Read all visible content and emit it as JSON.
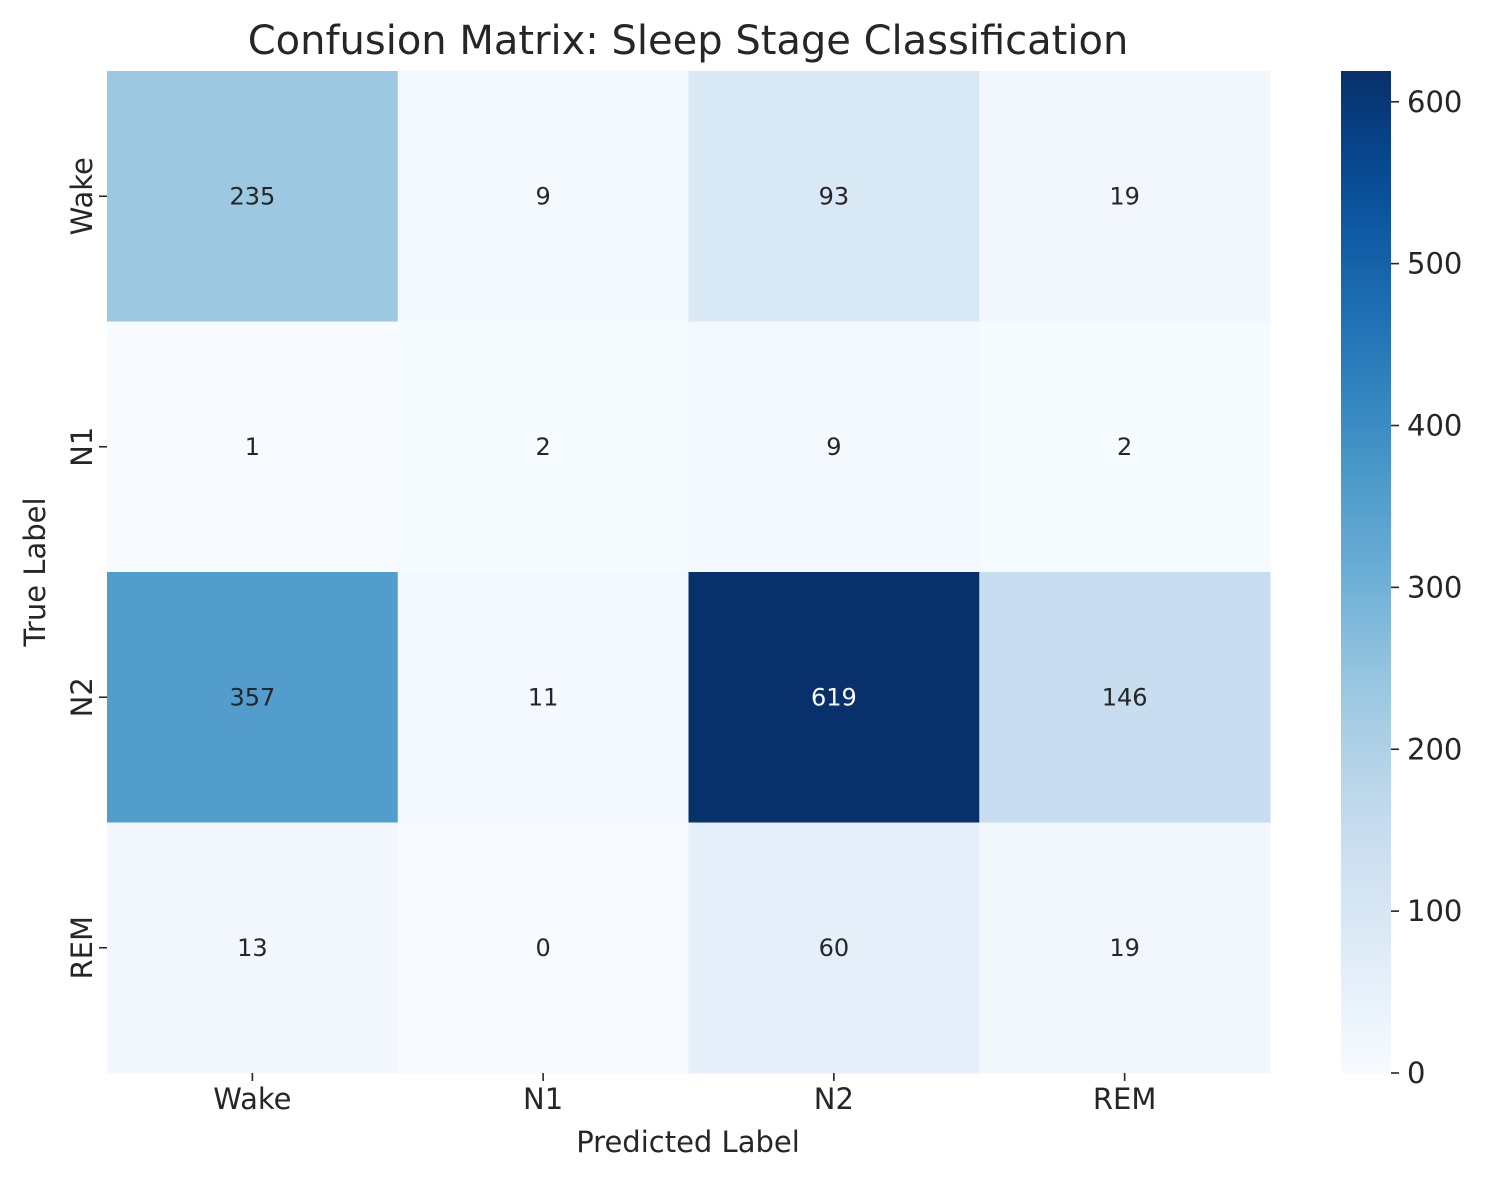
{
  "chart_data": {
    "type": "heatmap",
    "title": "Confusion Matrix: Sleep Stage Classification",
    "xlabel": "Predicted Label",
    "ylabel": "True Label",
    "x_categories": [
      "Wake",
      "N1",
      "N2",
      "REM"
    ],
    "y_categories": [
      "Wake",
      "N1",
      "N2",
      "REM"
    ],
    "values": [
      [
        235,
        9,
        93,
        19
      ],
      [
        1,
        2,
        9,
        2
      ],
      [
        357,
        11,
        619,
        146
      ],
      [
        13,
        0,
        60,
        19
      ]
    ],
    "colormap": "Blues",
    "colorbar": {
      "min": 0,
      "max": 619,
      "ticks": [
        0,
        100,
        200,
        300,
        400,
        500,
        600
      ],
      "tick_labels": [
        "0",
        "100",
        "200",
        "300",
        "400",
        "500",
        "600"
      ]
    },
    "grid": false,
    "legend": "none",
    "colors": {
      "low": "#f7fbff",
      "high": "#08306b",
      "text_dark": "#262626",
      "text_light": "#ffffff"
    }
  }
}
